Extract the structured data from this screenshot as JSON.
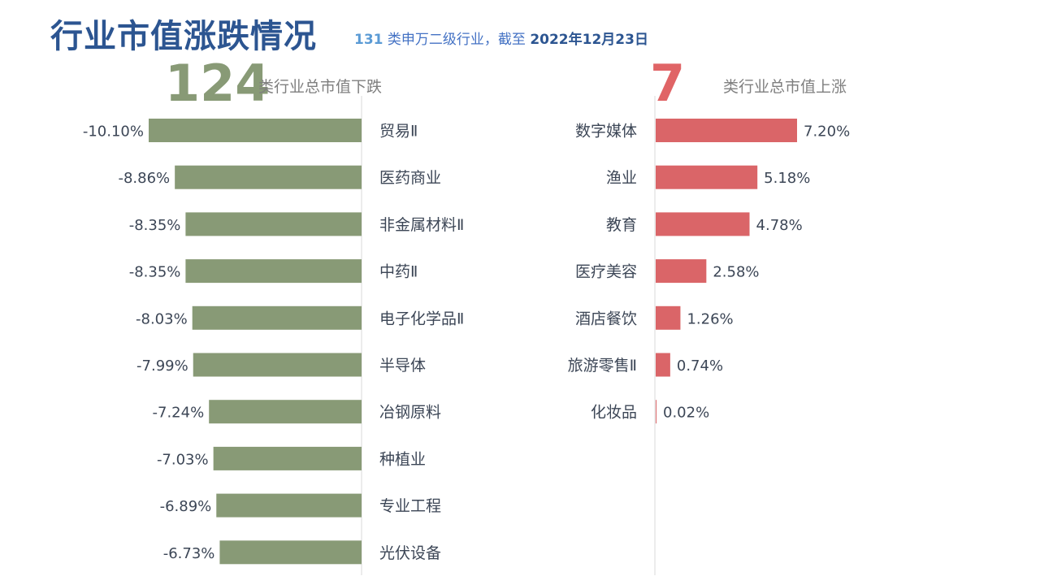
{
  "header": {
    "title": "行业市值涨跌情况",
    "subtitle_count": "131",
    "subtitle_text": " 类申万二级行业，截至 ",
    "subtitle_date": "2022年12月23日"
  },
  "summary": {
    "down_count": "124",
    "down_label": "类行业总市值下跌",
    "up_count": "7",
    "up_label": "类行业总市值上涨"
  },
  "colors": {
    "title": "#2c5591",
    "down_bar": "#889a76",
    "up_bar": "#da6568",
    "value_text": "#3c4656",
    "axis_line": "#d9d9d9"
  },
  "chart_data": [
    {
      "type": "bar",
      "orientation": "horizontal",
      "direction": "leftward",
      "categories": [
        "贸易Ⅱ",
        "医药商业",
        "非金属材料Ⅱ",
        "中药Ⅱ",
        "电子化学品Ⅱ",
        "半导体",
        "冶钢原料",
        "种植业",
        "专业工程",
        "光伏设备"
      ],
      "values": [
        -10.1,
        -8.86,
        -8.35,
        -8.35,
        -8.03,
        -7.99,
        -7.24,
        -7.03,
        -6.89,
        -6.73
      ],
      "labels": [
        "-10.10%",
        "-8.86%",
        "-8.35%",
        "-8.35%",
        "-8.03%",
        "-7.99%",
        "-7.24%",
        "-7.03%",
        "-6.89%",
        "-6.73%"
      ],
      "color": "#889a76"
    },
    {
      "type": "bar",
      "orientation": "horizontal",
      "direction": "rightward",
      "categories": [
        "数字媒体",
        "渔业",
        "教育",
        "医疗美容",
        "酒店餐饮",
        "旅游零售Ⅱ",
        "化妆品"
      ],
      "values": [
        7.2,
        5.18,
        4.78,
        2.58,
        1.26,
        0.74,
        0.02
      ],
      "labels": [
        "7.20%",
        "5.18%",
        "4.78%",
        "2.58%",
        "1.26%",
        "0.74%",
        "0.02%"
      ],
      "color": "#da6568"
    }
  ]
}
